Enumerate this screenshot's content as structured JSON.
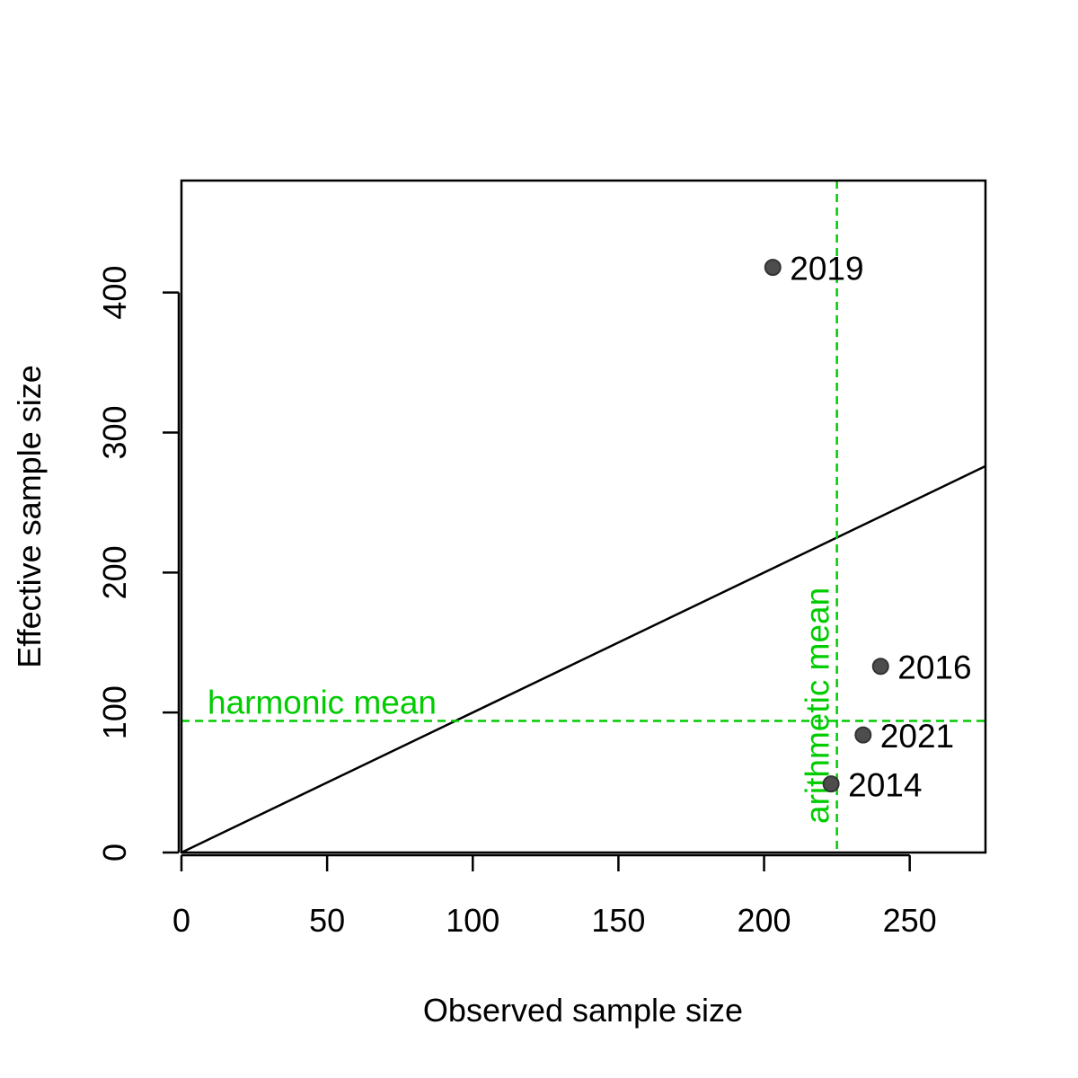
{
  "chart_data": {
    "type": "scatter",
    "title": "",
    "xlabel": "Observed sample size",
    "ylabel": "Effective sample size",
    "xlim": [
      0,
      276
    ],
    "ylim": [
      0,
      480
    ],
    "xticks": [
      0,
      50,
      100,
      150,
      200,
      250
    ],
    "yticks": [
      0,
      100,
      200,
      300,
      400
    ],
    "grid": false,
    "points": [
      {
        "label": "2019",
        "x": 203,
        "y": 418
      },
      {
        "label": "2016",
        "x": 240,
        "y": 133
      },
      {
        "label": "2021",
        "x": 234,
        "y": 84
      },
      {
        "label": "2014",
        "x": 223,
        "y": 49
      }
    ],
    "reference_lines": {
      "identity": {
        "slope": 1,
        "intercept": 0,
        "color": "#000000"
      },
      "harmonic_mean": {
        "label": "harmonic mean",
        "value": 94,
        "orientation": "horizontal",
        "color": "#00CC00"
      },
      "arithmetic_mean": {
        "label": "arithmetic mean",
        "value": 225,
        "orientation": "vertical",
        "color": "#00CC00"
      }
    },
    "point_color": "#4D4D4D"
  }
}
